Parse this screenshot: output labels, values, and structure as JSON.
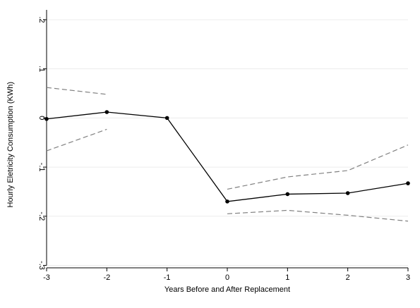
{
  "chart_data": {
    "type": "line",
    "xlabel": "Years Before and After Replacement",
    "ylabel": "Hourly Eletricity Consumption (KWh)",
    "x_ticks": [
      -3,
      -2,
      -1,
      0,
      1,
      2,
      3
    ],
    "y_ticks": [
      -0.3,
      -0.2,
      -0.1,
      0,
      0.1,
      0.2
    ],
    "y_tick_labels": [
      "-.3",
      "-.2",
      "-.1",
      "0",
      ".1",
      ".2"
    ],
    "xlim": [
      -3,
      3
    ],
    "ylim": [
      -0.305,
      0.22
    ],
    "grid": "horizontal",
    "series": [
      {
        "role": "estimate",
        "style": "solid-with-markers",
        "color": "#000000",
        "segments": [
          [
            [
              -3,
              -0.002
            ],
            [
              -2,
              0.012
            ],
            [
              -1,
              0.0
            ],
            [
              0,
              -0.17
            ],
            [
              1,
              -0.155
            ],
            [
              2,
              -0.153
            ],
            [
              3,
              -0.133
            ]
          ]
        ]
      },
      {
        "role": "upper-ci",
        "style": "dashed",
        "color": "#808080",
        "segments": [
          [
            [
              -3,
              0.062
            ],
            [
              -2,
              0.048
            ]
          ],
          [
            [
              0,
              -0.145
            ],
            [
              1,
              -0.12
            ],
            [
              2,
              -0.107
            ],
            [
              3,
              -0.055
            ]
          ]
        ]
      },
      {
        "role": "lower-ci",
        "style": "dashed",
        "color": "#808080",
        "segments": [
          [
            [
              -3,
              -0.067
            ],
            [
              -2,
              -0.023
            ]
          ],
          [
            [
              0,
              -0.195
            ],
            [
              1,
              -0.188
            ],
            [
              2,
              -0.198
            ],
            [
              3,
              -0.21
            ]
          ]
        ]
      }
    ]
  }
}
